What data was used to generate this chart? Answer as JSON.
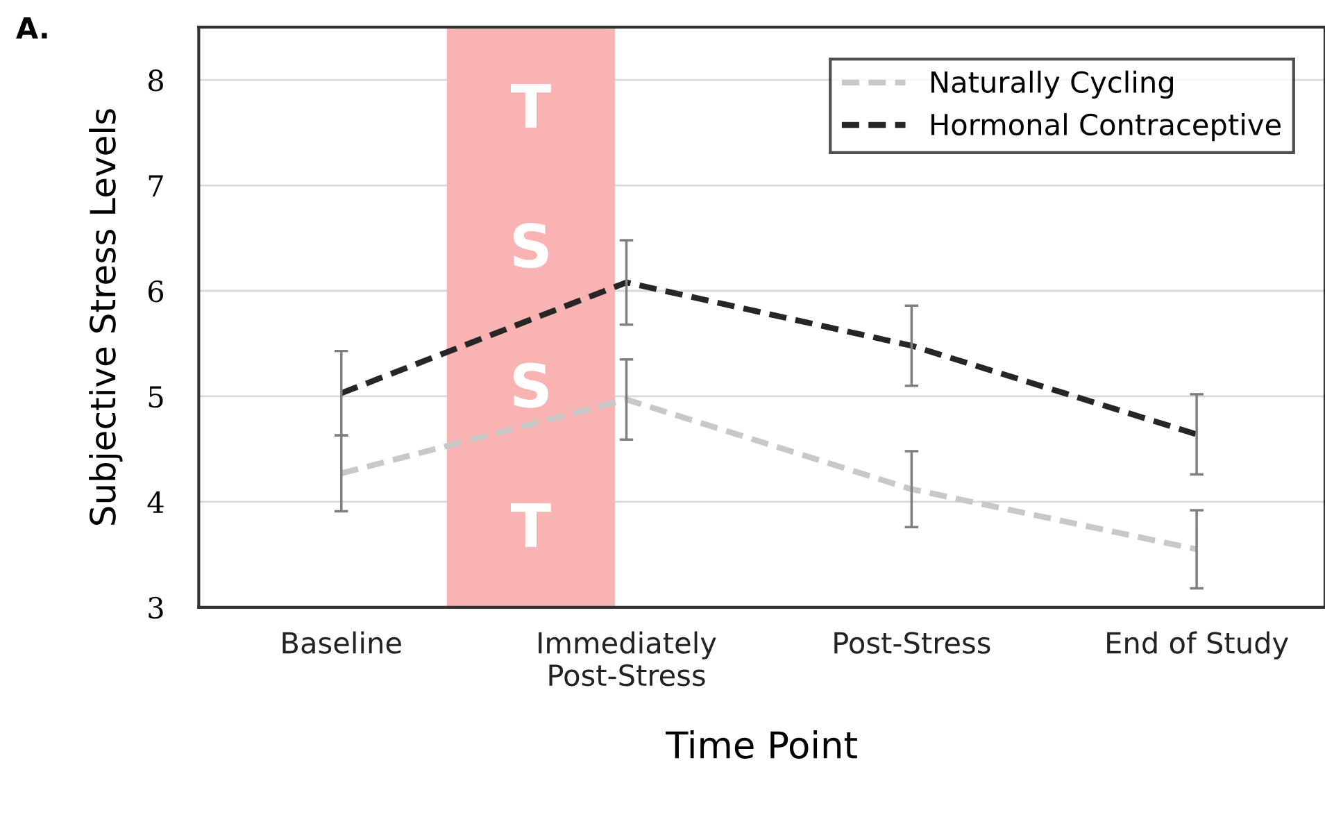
{
  "chart_data": {
    "type": "line",
    "xlabel": "Time Point",
    "ylabel": "Subjective Stress Levels",
    "categories": [
      "Baseline",
      "Immediately\nPost-Stress",
      "Post-Stress",
      "End of Study"
    ],
    "series": [
      {
        "name": "Naturally Cycling",
        "color": "#c8c8c8",
        "values": [
          4.27,
          4.97,
          4.12,
          3.55
        ],
        "errors": [
          0.36,
          0.38,
          0.36,
          0.37
        ]
      },
      {
        "name": "Hormonal Contraceptive",
        "color": "#262626",
        "values": [
          5.03,
          6.08,
          5.48,
          4.64
        ],
        "errors": [
          0.4,
          0.4,
          0.38,
          0.38
        ]
      }
    ],
    "ylim": [
      3,
      8.5
    ],
    "yticks": [
      3,
      4,
      5,
      6,
      7,
      8
    ],
    "grid": "y",
    "legend": "top right",
    "line_style": "dashed",
    "marker": "none",
    "annotations": [
      "A.",
      "TSST"
    ]
  }
}
